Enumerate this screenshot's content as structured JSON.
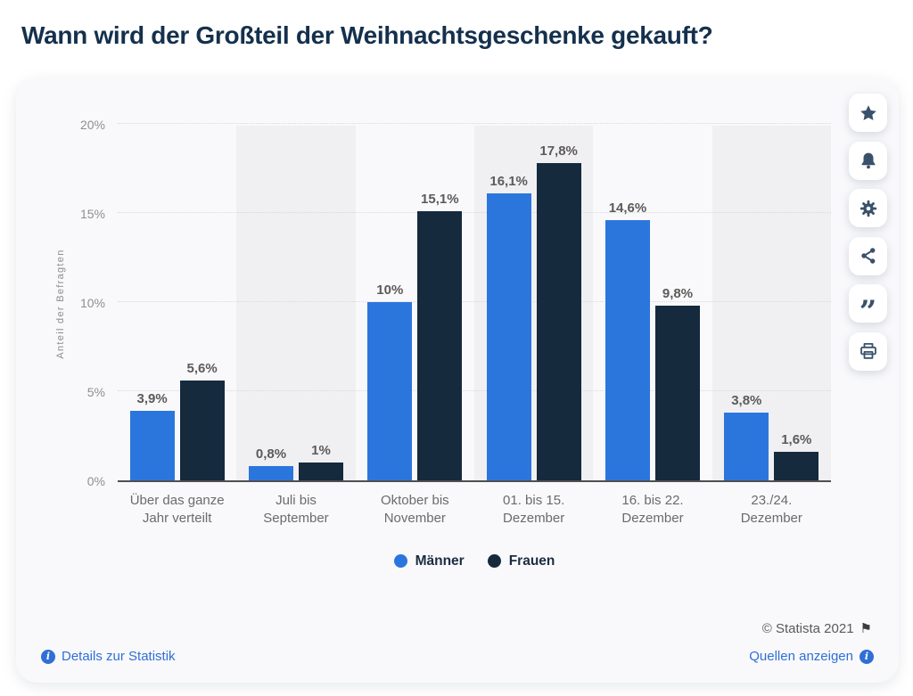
{
  "title": "Wann wird der Großteil der Weihnachtsgeschenke gekauft?",
  "chart_data": {
    "type": "bar",
    "categories": [
      "Über das ganze Jahr verteilt",
      "Juli bis September",
      "Oktober bis November",
      "01. bis 15. Dezember",
      "16. bis 22. Dezember",
      "23./24. Dezember"
    ],
    "series": [
      {
        "name": "Männer",
        "color": "#2b76dd",
        "values": [
          3.9,
          0.8,
          10,
          16.1,
          14.6,
          3.8
        ],
        "labels": [
          "3,9%",
          "0,8%",
          "10%",
          "16,1%",
          "14,6%",
          "3,8%"
        ]
      },
      {
        "name": "Frauen",
        "color": "#152a3d",
        "values": [
          5.6,
          1,
          15.1,
          17.8,
          9.8,
          1.6
        ],
        "labels": [
          "5,6%",
          "1%",
          "15,1%",
          "17,8%",
          "9,8%",
          "1,6%"
        ]
      }
    ],
    "ylabel": "Anteil der Befragten",
    "xlabel": "",
    "ylim": [
      0,
      20
    ],
    "yticks": [
      {
        "value": 0,
        "label": "0%"
      },
      {
        "value": 5,
        "label": "5%"
      },
      {
        "value": 10,
        "label": "10%"
      },
      {
        "value": 15,
        "label": "15%"
      },
      {
        "value": 20,
        "label": "20%"
      }
    ],
    "grid": true,
    "legend_position": "bottom",
    "stripe_color": "#f0f0f3"
  },
  "toolbar": {
    "icons": [
      "star",
      "bell",
      "gear",
      "share",
      "quote",
      "printer"
    ]
  },
  "icons": {
    "flag": "⚑",
    "info": "i",
    "quote": "”"
  },
  "footer": {
    "copyright": "© Statista 2021",
    "details_link": "Details zur Statistik",
    "sources_link": "Quellen anzeigen"
  },
  "colors": {
    "accent_link": "#2f6fd6",
    "title_text": "#14304d",
    "card_background": "#f9f9fb",
    "axis_line": "#4f4f52"
  }
}
